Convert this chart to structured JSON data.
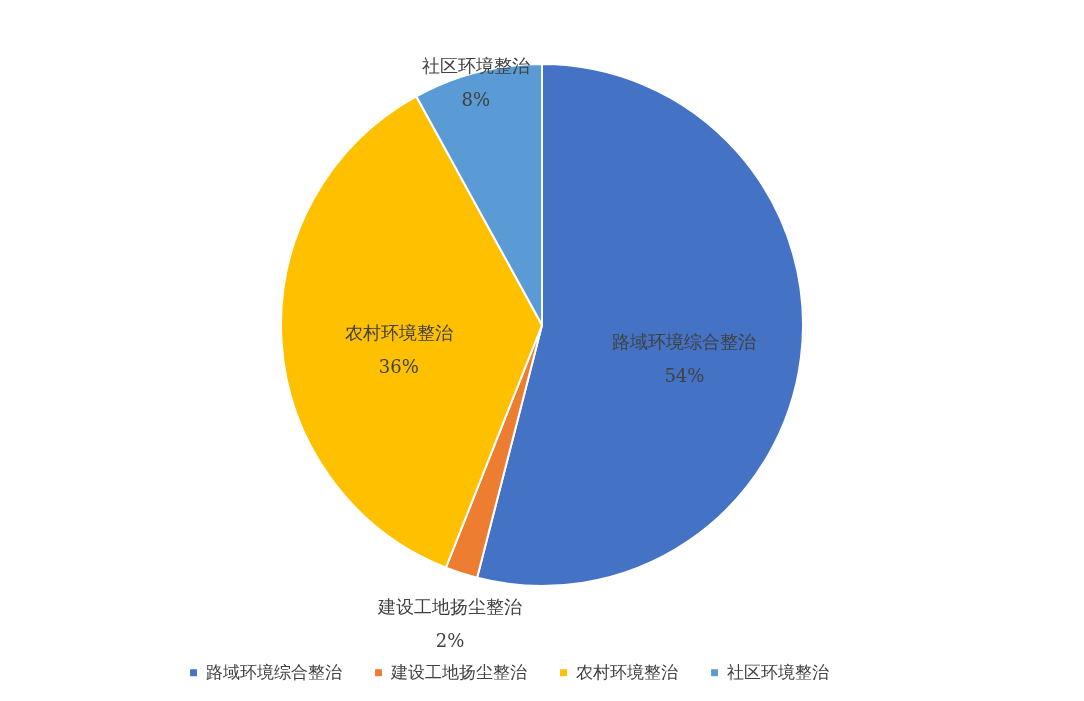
{
  "chart_data": {
    "type": "pie",
    "categories": [
      "路域环境综合整治",
      "建设工地扬尘整治",
      "农村环境整治",
      "社区环境整治"
    ],
    "values": [
      54,
      2,
      36,
      8
    ],
    "value_labels": [
      "54%",
      "2%",
      "36%",
      "8%"
    ],
    "colors": [
      "#4472c4",
      "#ed7d31",
      "#ffc000",
      "#5b9bd5"
    ],
    "legend": "bottom"
  }
}
